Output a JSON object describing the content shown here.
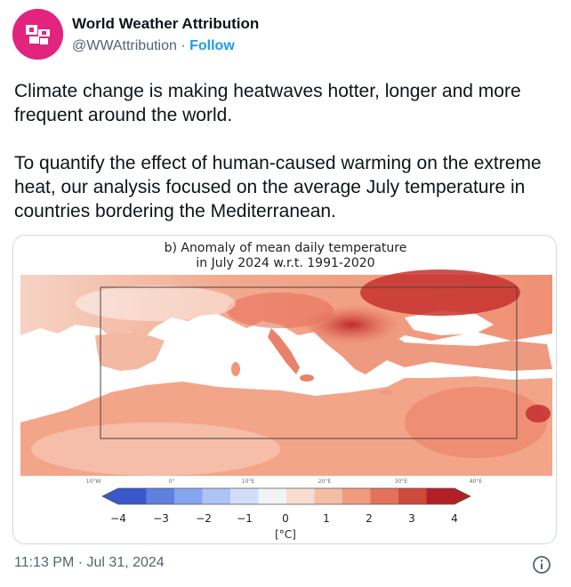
{
  "account": {
    "name": "World Weather Attribution",
    "handle": "@WWAttribution",
    "separator": " · ",
    "follow_label": "Follow",
    "avatar_color": "#e2247e"
  },
  "tweet": {
    "paragraph1": "Climate change is making heatwaves hotter, longer and more frequent around the world.",
    "paragraph2": "To quantify the effect of human-caused warming on the extreme heat, our analysis focused on the average July temperature in countries bordering the Mediterranean."
  },
  "figure": {
    "title_line1": "b) Anomaly of mean daily temperature",
    "title_line2": "in July 2024 w.r.t. 1991-2020",
    "lon_labels": [
      "10°W",
      "0°",
      "10°E",
      "20°E",
      "30°E",
      "40°E"
    ],
    "colorbar": {
      "unit": "[°C]",
      "tick_labels": [
        "−4",
        "−3",
        "−2",
        "−1",
        "0",
        "1",
        "2",
        "3",
        "4"
      ],
      "colors": [
        "#3a58c9",
        "#5f80df",
        "#87a4ee",
        "#adc4f6",
        "#d2def9",
        "#f1f3f7",
        "#f8dcd0",
        "#f6bda6",
        "#f09a7f",
        "#e4725a",
        "#cf4a3b",
        "#b31f26"
      ]
    }
  },
  "footer": {
    "timestamp": "11:13 PM · Jul 31, 2024"
  },
  "icons": {
    "avatar": "wwa-logo-icon",
    "info": "info-icon"
  }
}
